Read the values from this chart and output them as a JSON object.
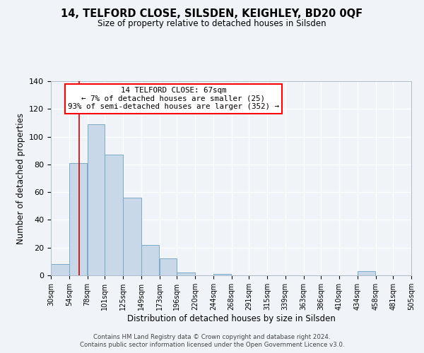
{
  "title": "14, TELFORD CLOSE, SILSDEN, KEIGHLEY, BD20 0QF",
  "subtitle": "Size of property relative to detached houses in Silsden",
  "xlabel": "Distribution of detached houses by size in Silsden",
  "ylabel": "Number of detached properties",
  "bar_color": "#c8d8e8",
  "bar_edge_color": "#7aaac8",
  "background_color": "#f0f4f8",
  "grid_color": "#ffffff",
  "annotation_box_text": "14 TELFORD CLOSE: 67sqm\n← 7% of detached houses are smaller (25)\n93% of semi-detached houses are larger (352) →",
  "vline_x": 67,
  "vline_color": "#cc0000",
  "bin_edges": [
    30,
    54,
    78,
    101,
    125,
    149,
    173,
    196,
    220,
    244,
    268,
    291,
    315,
    339,
    363,
    386,
    410,
    434,
    458,
    481,
    505
  ],
  "bin_values": [
    8,
    81,
    109,
    87,
    56,
    22,
    12,
    2,
    0,
    1,
    0,
    0,
    0,
    0,
    0,
    0,
    0,
    3,
    0,
    0
  ],
  "tick_labels": [
    "30sqm",
    "54sqm",
    "78sqm",
    "101sqm",
    "125sqm",
    "149sqm",
    "173sqm",
    "196sqm",
    "220sqm",
    "244sqm",
    "268sqm",
    "291sqm",
    "315sqm",
    "339sqm",
    "363sqm",
    "386sqm",
    "410sqm",
    "434sqm",
    "458sqm",
    "481sqm",
    "505sqm"
  ],
  "ylim": [
    0,
    140
  ],
  "yticks": [
    0,
    20,
    40,
    60,
    80,
    100,
    120,
    140
  ],
  "footer_line1": "Contains HM Land Registry data © Crown copyright and database right 2024.",
  "footer_line2": "Contains public sector information licensed under the Open Government Licence v3.0."
}
